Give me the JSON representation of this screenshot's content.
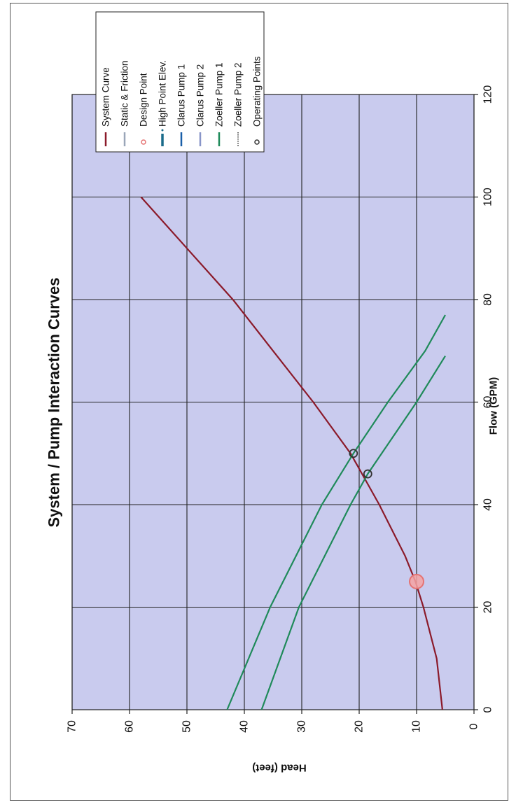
{
  "chart_data": {
    "type": "line",
    "title": "System / Pump Interaction Curves",
    "xlabel": "Flow (GPM)",
    "ylabel": "Head (feet)",
    "xlim": [
      0,
      120
    ],
    "ylim": [
      0,
      70
    ],
    "x_ticks": [
      "0",
      "20",
      "40",
      "60",
      "80",
      "100",
      "120"
    ],
    "y_ticks": [
      "0",
      "10",
      "20",
      "30",
      "40",
      "50",
      "60",
      "70"
    ],
    "grid": true,
    "legend_position": "top-right",
    "orientation": "rotated 90 degrees counter-clockwise",
    "legend": [
      {
        "label": "System Curve",
        "color": "#8b1a2a",
        "marker": "line"
      },
      {
        "label": "Static & Friction",
        "color": "#9aa6b8",
        "marker": "line"
      },
      {
        "label": "Design Point",
        "color": "#e57373",
        "marker": "circle"
      },
      {
        "label": "High Point Elev.",
        "color": "#1a6b8a",
        "marker": "dash-dot"
      },
      {
        "label": "Clarus Pump 1",
        "color": "#1a5fa8",
        "marker": "line"
      },
      {
        "label": "Clarus Pump 2",
        "color": "#8895c8",
        "marker": "line"
      },
      {
        "label": "Zoeller Pump 1",
        "color": "#1f8a5a",
        "marker": "line"
      },
      {
        "label": "Zoeller Pump 2",
        "color": "#333333",
        "marker": "dotted"
      },
      {
        "label": "Operating Points",
        "color": "#333333",
        "marker": "open-circle"
      }
    ],
    "series": [
      {
        "name": "System Curve",
        "color": "#8b1a2a",
        "x": [
          0,
          10,
          20,
          25,
          30,
          40,
          46,
          50,
          60,
          70,
          80,
          90,
          100
        ],
        "y": [
          5.5,
          6.5,
          8.8,
          10.2,
          12,
          16.5,
          19.5,
          21.5,
          28,
          35,
          42,
          50,
          58
        ]
      },
      {
        "name": "Zoeller Pump 1",
        "color": "#1f8a5a",
        "x": [
          0,
          20,
          40,
          50,
          60,
          70,
          77
        ],
        "y": [
          43,
          35.5,
          26.5,
          21,
          15,
          8.5,
          5
        ]
      },
      {
        "name": "Zoeller Pump 2",
        "color": "#1f8a5a",
        "x": [
          0,
          20,
          40,
          46,
          60,
          69
        ],
        "y": [
          37,
          30.5,
          21.5,
          18.5,
          10,
          5
        ]
      }
    ],
    "points": [
      {
        "name": "Design Point",
        "x": 25,
        "y": 10,
        "color": "#e57373"
      },
      {
        "name": "Operating Points",
        "x": 50,
        "y": 21,
        "color": "#333333"
      },
      {
        "name": "Operating Points",
        "x": 46,
        "y": 18.5,
        "color": "#333333"
      }
    ]
  }
}
